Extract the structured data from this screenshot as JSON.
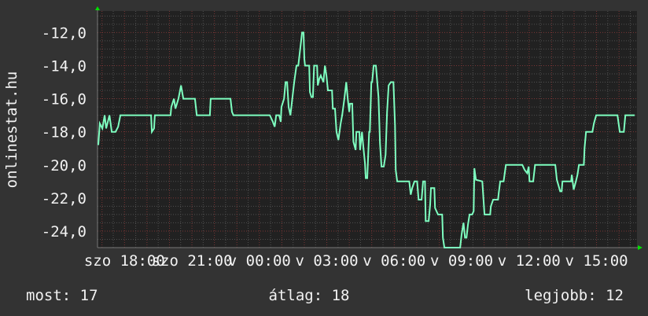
{
  "chart_data": {
    "type": "line",
    "title": "",
    "ylabel": "onlinestat.hu",
    "xlabel": "",
    "x_range": [
      "szo 16:48",
      "v 16:48"
    ],
    "ylim": [
      -25,
      -10.7
    ],
    "y_ticks": [
      -12,
      -14,
      -16,
      -18,
      -20,
      -22,
      -24
    ],
    "y_tick_labels": [
      "-12,0",
      "-14,0",
      "-16,0",
      "-18,0",
      "-20,0",
      "-22,0",
      "-24,0"
    ],
    "x_tick_labels": [
      "szo 18:00",
      "szo 21:00",
      "v 00:00",
      "v 03:00",
      "v 06:00",
      "v 09:00",
      "v 12:00",
      "v 15:00"
    ],
    "grid": true,
    "colors": {
      "line": "#7effc0",
      "background": "#333333",
      "plot": "#212121",
      "major_grid": "#7a3535",
      "minor_grid": "#505050",
      "arrow": "#00e000"
    },
    "series": [
      {
        "x": [
          "16:50",
          "16:54",
          "17:01",
          "17:07",
          "17:11",
          "17:20",
          "17:26",
          "17:36",
          "17:43",
          "17:49",
          "19:11",
          "19:13",
          "19:19",
          "19:21",
          "20:03",
          "20:05",
          "20:12",
          "20:16",
          "20:24",
          "20:31",
          "20:37",
          "21:08",
          "21:13",
          "21:48",
          "21:50",
          "22:43",
          "22:47",
          "22:51",
          "00:28",
          "00:36",
          "00:41",
          "00:45",
          "00:53",
          "00:57",
          "00:59",
          "01:06",
          "01:10",
          "01:14",
          "01:18",
          "01:23",
          "01:27",
          "01:33",
          "01:39",
          "01:44",
          "01:50",
          "01:54",
          "01:58",
          "02:00",
          "02:02",
          "02:13",
          "02:15",
          "02:19",
          "02:23",
          "02:26",
          "02:34",
          "02:36",
          "02:40",
          "02:44",
          "02:51",
          "02:55",
          "02:59",
          "03:03",
          "03:14",
          "03:16",
          "03:22",
          "03:26",
          "03:31",
          "03:37",
          "03:41",
          "03:47",
          "03:52",
          "03:56",
          "04:00",
          "04:02",
          "04:08",
          "04:11",
          "04:17",
          "04:19",
          "04:27",
          "04:29",
          "04:34",
          "04:38",
          "04:42",
          "04:44",
          "04:48",
          "04:53",
          "04:55",
          "04:59",
          "05:01",
          "05:05",
          "05:11",
          "05:18",
          "05:22",
          "05:26",
          "05:32",
          "05:37",
          "05:41",
          "05:45",
          "05:51",
          "05:58",
          "06:02",
          "06:04",
          "06:08",
          "06:40",
          "06:44",
          "06:48",
          "06:54",
          "07:01",
          "07:05",
          "07:13",
          "07:17",
          "07:22",
          "07:24",
          "07:32",
          "07:36",
          "07:38",
          "07:47",
          "07:49",
          "07:57",
          "08:08",
          "08:10",
          "08:14",
          "08:56",
          "09:00",
          "09:05",
          "09:09",
          "09:13",
          "09:17",
          "09:21",
          "09:28",
          "09:32",
          "09:34",
          "09:38",
          "09:55",
          "10:01",
          "10:16",
          "10:18",
          "10:24",
          "10:37",
          "10:39",
          "10:43",
          "10:52",
          "10:58",
          "11:42",
          "11:48",
          "11:55",
          "11:59",
          "12:01",
          "12:11",
          "12:16",
          "13:10",
          "13:14",
          "13:23",
          "13:27",
          "13:29",
          "13:52",
          "13:54",
          "13:59",
          "14:05",
          "14:09",
          "14:13",
          "14:26",
          "14:28",
          "14:32",
          "14:49",
          "14:53",
          "14:59",
          "15:56",
          "16:02",
          "16:13",
          "16:17",
          "16:42"
        ],
        "y": [
          -18.8,
          -17.5,
          -17.8,
          -17,
          -17.8,
          -17,
          -18,
          -18,
          -17.7,
          -17,
          -17,
          -18,
          -17.8,
          -17,
          -17,
          -16.5,
          -16,
          -16.6,
          -16,
          -15.2,
          -16,
          -16,
          -17,
          -17,
          -16,
          -16,
          -16.8,
          -17,
          -17,
          -17.4,
          -17.7,
          -17,
          -17,
          -17.4,
          -16.5,
          -16,
          -15,
          -15,
          -16.5,
          -17,
          -16.2,
          -15,
          -14,
          -14,
          -12.8,
          -12,
          -12,
          -13.6,
          -14,
          -14,
          -15.6,
          -15.9,
          -15.9,
          -14,
          -14,
          -15.2,
          -14.8,
          -14.6,
          -15,
          -14,
          -14.6,
          -15.5,
          -15.5,
          -16.6,
          -16.6,
          -18,
          -18.5,
          -17.5,
          -17,
          -16,
          -15,
          -16,
          -16.8,
          -16.3,
          -16.3,
          -18.6,
          -19.1,
          -18,
          -18,
          -19.1,
          -18,
          -19,
          -19.9,
          -20.8,
          -20.8,
          -18,
          -18,
          -15,
          -15,
          -14,
          -14,
          -15.9,
          -18.7,
          -20.1,
          -20.1,
          -19.4,
          -16.8,
          -15.2,
          -15,
          -15,
          -17.6,
          -20.3,
          -21,
          -21,
          -21.8,
          -21.4,
          -21,
          -21,
          -22.1,
          -22.1,
          -21,
          -21,
          -23.4,
          -23.4,
          -22.4,
          -21.4,
          -21.4,
          -22.6,
          -23,
          -23,
          -24.4,
          -25,
          -25,
          -24.2,
          -23.5,
          -24.4,
          -24.4,
          -23.6,
          -23,
          -23,
          -22.8,
          -20.2,
          -20.9,
          -21,
          -23,
          -23,
          -22.5,
          -22.1,
          -22.1,
          -21.7,
          -21,
          -21,
          -20,
          -20,
          -20.3,
          -20.5,
          -20.1,
          -21,
          -21,
          -20,
          -20,
          -20.9,
          -21.6,
          -21.6,
          -21,
          -21,
          -20.6,
          -21.5,
          -21,
          -20.6,
          -20,
          -20,
          -19,
          -18,
          -18,
          -17.5,
          -17,
          -17,
          -18,
          -18,
          -17,
          -17
        ]
      }
    ]
  },
  "footer": {
    "current": "most: 17",
    "average": "átlag: 18",
    "best": "legjobb: 12"
  }
}
